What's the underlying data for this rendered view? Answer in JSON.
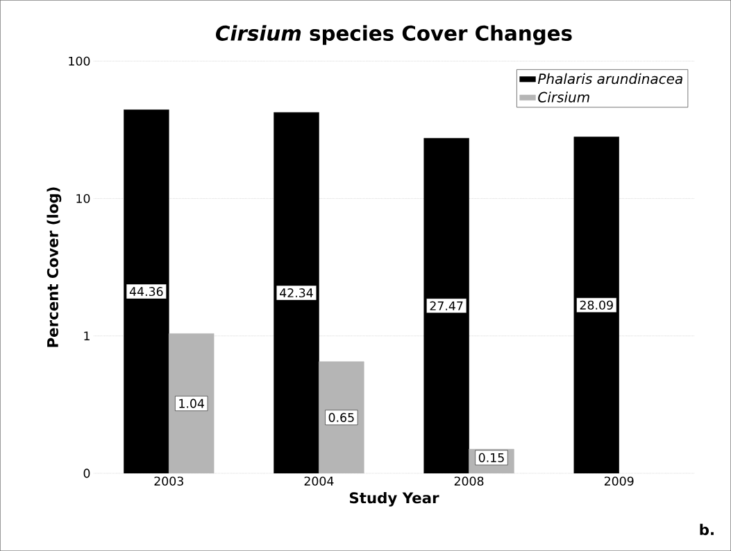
{
  "chart_data": {
    "type": "bar",
    "title": "*Cirsium* species Cover Changes",
    "xlabel": "Study Year",
    "ylabel": "Percent Cover (log)",
    "categories": [
      "2003",
      "2004",
      "2008",
      "2009"
    ],
    "series": [
      {
        "name": "Phalaris arundinacea",
        "color": "#000000",
        "values": [
          44.36,
          42.34,
          27.47,
          28.09
        ],
        "value_labels": [
          "44.36",
          "42.34",
          "27.47",
          "28.09"
        ]
      },
      {
        "name": "Cirsium",
        "color": "#b5b5b5",
        "values": [
          1.04,
          0.65,
          0.15,
          null
        ],
        "value_labels": [
          "1.04",
          "0.65",
          "0.15",
          null
        ]
      }
    ],
    "log": "y",
    "ylim": [
      0.1,
      100
    ],
    "yticks": [
      {
        "value": 0.1,
        "label": "0"
      },
      1,
      10,
      100
    ],
    "grid": "y",
    "legend": "top right",
    "annotations": [
      "b."
    ]
  }
}
